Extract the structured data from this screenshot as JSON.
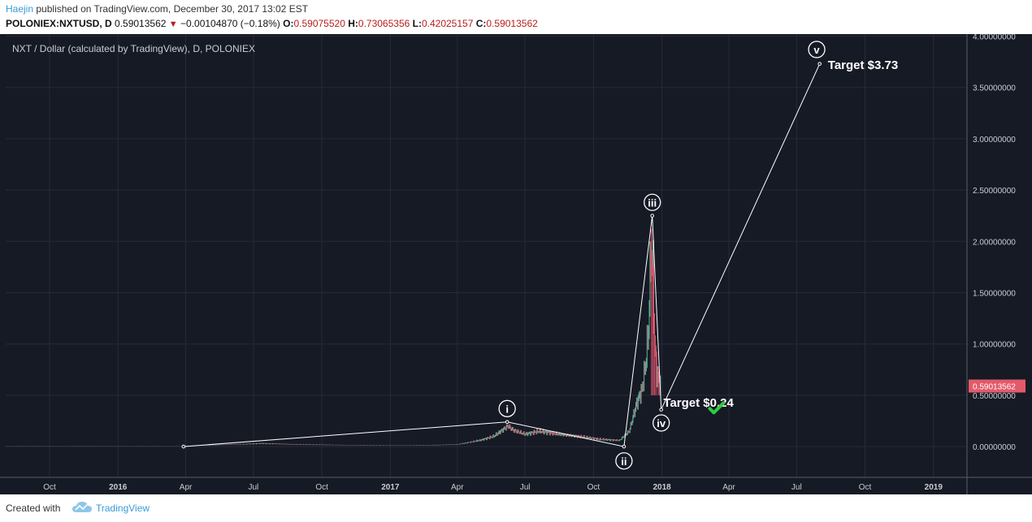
{
  "header": {
    "author": "Haejin",
    "published_text": "published on TradingView.com, December 30, 2017 13:02 EST",
    "symbol": "POLONIEX:NXTUSD, D",
    "last": "0.59013562",
    "change": "−0.00104870 (−0.18%)",
    "o_label": "O:",
    "o_value": "0.59075520",
    "h_label": "H:",
    "h_value": "0.73065356",
    "l_label": "L:",
    "l_value": "0.42025157",
    "c_label": "C:",
    "c_value": "0.59013562"
  },
  "footer": {
    "created_with": "Created with",
    "brand": "TradingView"
  },
  "colors": {
    "background": "#161a25",
    "grid": "#272b38",
    "up": "#5bb89e",
    "down": "#d8556a",
    "price_tag": "#e35a6a",
    "check": "#2ecc40"
  },
  "chart_data": {
    "type": "candlestick",
    "title": "NXT / Dollar (calculated by TradingView), D, POLONIEX",
    "y_ticks": [
      "4.00000000",
      "3.50000000",
      "3.00000000",
      "2.50000000",
      "2.00000000",
      "1.50000000",
      "1.00000000",
      "0.50000000",
      "0.00000000"
    ],
    "y_tick_values": [
      4.0,
      3.5,
      3.0,
      2.5,
      2.0,
      1.5,
      1.0,
      0.5,
      0.0
    ],
    "ylim": [
      -0.3,
      4.02
    ],
    "x_ticks": [
      "Oct",
      "2016",
      "Apr",
      "Jul",
      "Oct",
      "2017",
      "Apr",
      "Jul",
      "Oct",
      "2018",
      "Apr",
      "Jul",
      "Oct",
      "2019"
    ],
    "x_tick_dates": [
      "2015-10-01",
      "2016-01-01",
      "2016-04-01",
      "2016-07-01",
      "2016-10-01",
      "2017-01-01",
      "2017-04-01",
      "2017-07-01",
      "2017-10-01",
      "2018-01-01",
      "2018-04-01",
      "2018-07-01",
      "2018-10-01",
      "2019-01-01"
    ],
    "bold_x_ticks": [
      "2016",
      "2017",
      "2018",
      "2019"
    ],
    "xlim": [
      "2015-08-03",
      "2019-02-15"
    ],
    "last_price_label": "0.59013562",
    "last_price": 0.59,
    "price_path": [
      [
        "2015-08-03",
        0.006
      ],
      [
        "2016-03-29",
        0.006
      ],
      [
        "2016-06-01",
        0.02
      ],
      [
        "2016-07-15",
        0.03
      ],
      [
        "2016-09-01",
        0.02
      ],
      [
        "2016-12-01",
        0.012
      ],
      [
        "2017-02-15",
        0.012
      ],
      [
        "2017-04-01",
        0.02
      ],
      [
        "2017-05-01",
        0.06
      ],
      [
        "2017-05-20",
        0.1
      ],
      [
        "2017-06-08",
        0.2
      ],
      [
        "2017-06-15",
        0.16
      ],
      [
        "2017-07-01",
        0.12
      ],
      [
        "2017-07-20",
        0.15
      ],
      [
        "2017-08-15",
        0.12
      ],
      [
        "2017-09-10",
        0.1
      ],
      [
        "2017-10-10",
        0.07
      ],
      [
        "2017-11-05",
        0.06
      ],
      [
        "2017-11-18",
        0.15
      ],
      [
        "2017-11-28",
        0.42
      ],
      [
        "2017-12-05",
        0.55
      ],
      [
        "2017-12-10",
        0.8
      ],
      [
        "2017-12-14",
        1.15
      ],
      [
        "2017-12-17",
        1.9
      ],
      [
        "2017-12-20",
        1.7
      ],
      [
        "2017-12-22",
        1.0
      ],
      [
        "2017-12-25",
        0.72
      ],
      [
        "2017-12-30",
        0.59
      ]
    ],
    "high_wicks": [
      [
        "2017-12-18",
        2.12
      ],
      [
        "2017-12-20",
        1.75
      ],
      [
        "2017-12-22",
        1.3
      ],
      [
        "2017-12-24",
        0.95
      ],
      [
        "2017-12-27",
        0.75
      ]
    ],
    "wave_line": [
      [
        "2016-03-29",
        0.0
      ],
      [
        "2017-06-07",
        0.24
      ],
      [
        "2017-11-11",
        0.0
      ],
      [
        "2017-12-19",
        2.25
      ],
      [
        "2017-12-31",
        0.36
      ],
      [
        "2018-08-01",
        3.73
      ]
    ],
    "wave_labels": [
      {
        "text": "i",
        "x": "2017-06-07",
        "y": 0.37
      },
      {
        "text": "ii",
        "x": "2017-11-11",
        "y": -0.14
      },
      {
        "text": "iii",
        "x": "2017-12-19",
        "y": 2.38
      },
      {
        "text": "iv",
        "x": "2017-12-31",
        "y": 0.23
      },
      {
        "text": "v",
        "x": "2018-07-28",
        "y": 3.87
      }
    ],
    "annotations": [
      {
        "text": "Target $3.73",
        "x": "2018-08-12",
        "y": 3.68
      },
      {
        "text": "Target $0.24",
        "x": "2018-01-03",
        "y": 0.39
      }
    ],
    "check_mark": {
      "x": "2018-03-15",
      "y": 0.37
    }
  }
}
